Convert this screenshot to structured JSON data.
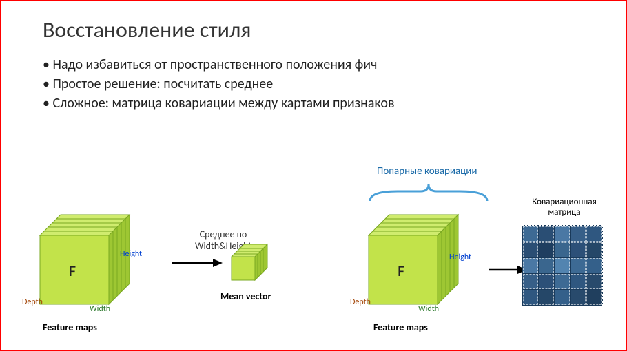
{
  "title": "Восстановление стиля",
  "bullets": [
    "Надо избавиться от пространственного положения фич",
    "Простое решение: посчитать среднее",
    "Сложное: матрица ковариации между картами признаков"
  ],
  "left": {
    "cube_letter": "F",
    "depth_label": "Depth",
    "width_label": "Width",
    "height_label": "Height",
    "caption": "Feature maps",
    "arrow_label_line1": "Среднее по",
    "arrow_label_line2": "Width&Height",
    "result_caption": "Mean vector"
  },
  "right": {
    "brace_label": "Попарные ковариации",
    "cube_letter": "F",
    "depth_label": "Depth",
    "width_label": "Width",
    "height_label": "Height",
    "caption": "Feature maps",
    "matrix_label_line1": "Ковариационная",
    "matrix_label_line2": "матрица"
  },
  "style": {
    "border_color": "#ff0000",
    "cube_face": "#c2e34a",
    "cube_top": "#d0ec6e",
    "cube_side": "#9ec733",
    "cube_edge": "#7aa821",
    "divider_color": "#4a8fc7",
    "brace_color": "#4aa0d8",
    "matrix_bg": "#1a3a5a",
    "matrix_cells": [
      [
        "#3d6a94",
        "#2a4e74",
        "#4a78a4",
        "#375f88",
        "#2f5780"
      ],
      [
        "#2a4e74",
        "#1f3e60",
        "#3a668e",
        "#2c5078",
        "#254768"
      ],
      [
        "#4a78a4",
        "#3a668e",
        "#5284b0",
        "#3d6a94",
        "#34608a"
      ],
      [
        "#375f88",
        "#2c5078",
        "#3d6a94",
        "#2f5780",
        "#284a6c"
      ],
      [
        "#2f5780",
        "#254768",
        "#34608a",
        "#284a6c",
        "#203f5e"
      ]
    ],
    "title_fontsize": 32,
    "bullet_fontsize": 20,
    "small_label_fontsize": 12,
    "caption_fontsize": 14
  }
}
